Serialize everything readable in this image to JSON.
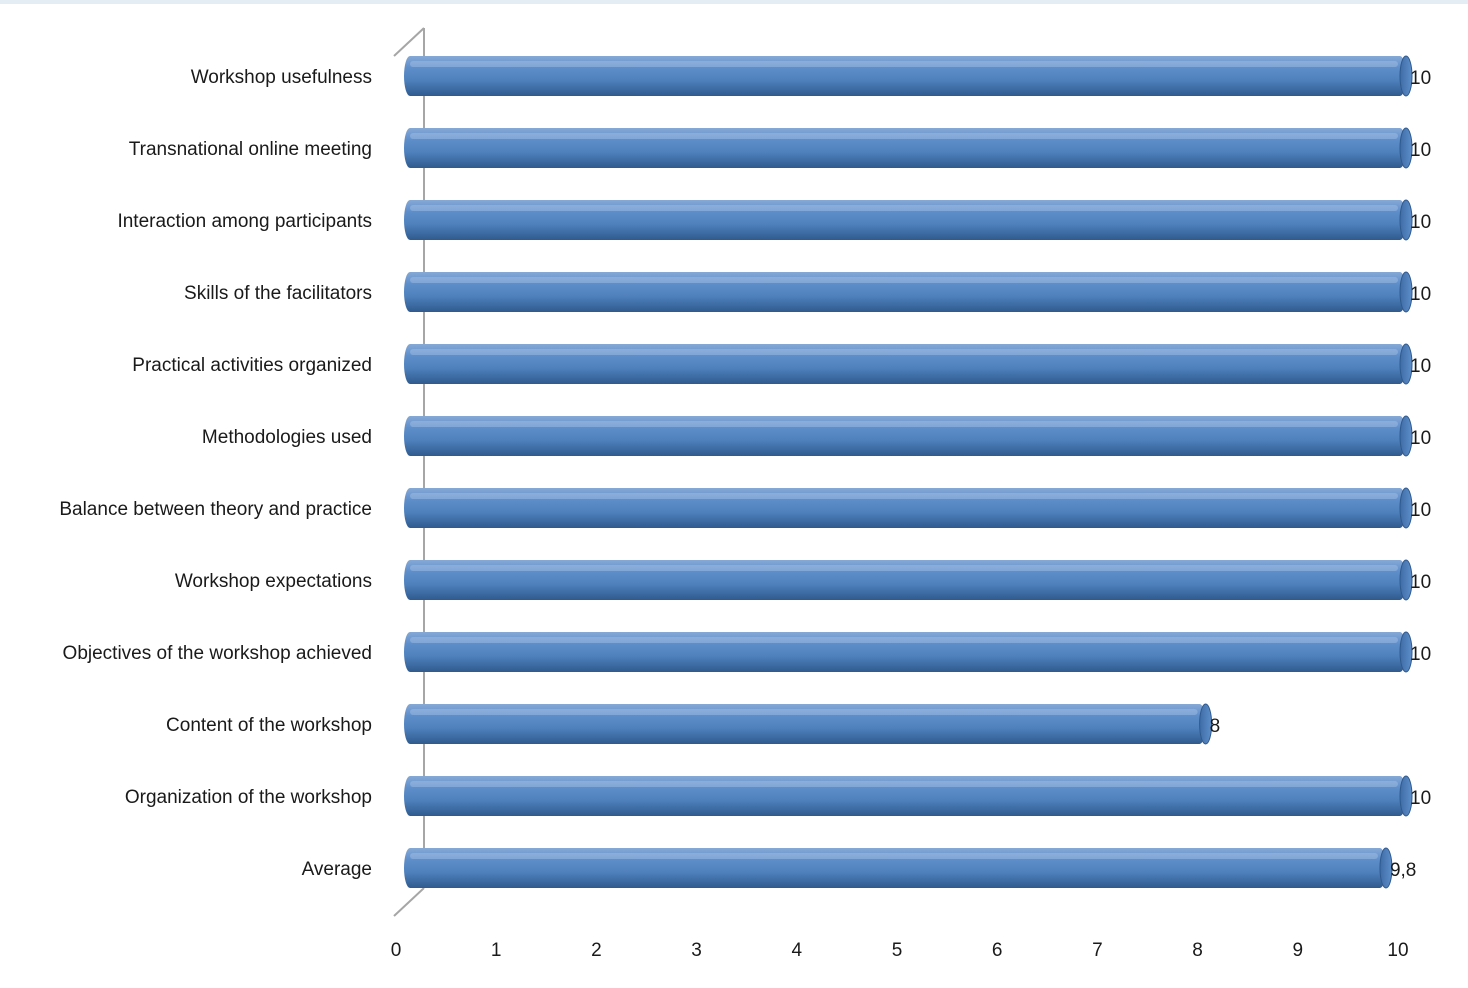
{
  "chart_data": {
    "type": "bar",
    "orientation": "horizontal",
    "title": "",
    "xlabel": "",
    "ylabel": "",
    "categories": [
      "Workshop usefulness",
      "Transnational online meeting",
      "Interaction among participants",
      "Skills of the facilitators",
      "Practical activities organized",
      "Methodologies used",
      "Balance between theory and practice",
      "Workshop expectations",
      "Objectives of the workshop achieved",
      "Content of the workshop",
      "Organization of the workshop",
      "Average"
    ],
    "values": [
      10,
      10,
      10,
      10,
      10,
      10,
      10,
      10,
      10,
      8,
      10,
      9.8
    ],
    "data_labels": [
      "10",
      "10",
      "10",
      "10",
      "10",
      "10",
      "10",
      "10",
      "10",
      "8",
      "10",
      "9,8"
    ],
    "xlim": [
      0,
      10
    ],
    "x_ticks": [
      "0",
      "1",
      "2",
      "3",
      "4",
      "5",
      "6",
      "7",
      "8",
      "9",
      "10"
    ],
    "grid": false,
    "legend": "none",
    "style": "3d-cylinder",
    "colors": {
      "bar": "#4f81bd",
      "bar_dark": "#2f5a8e",
      "bar_light": "#86a9d6",
      "axis": "#a6a6a6"
    }
  }
}
